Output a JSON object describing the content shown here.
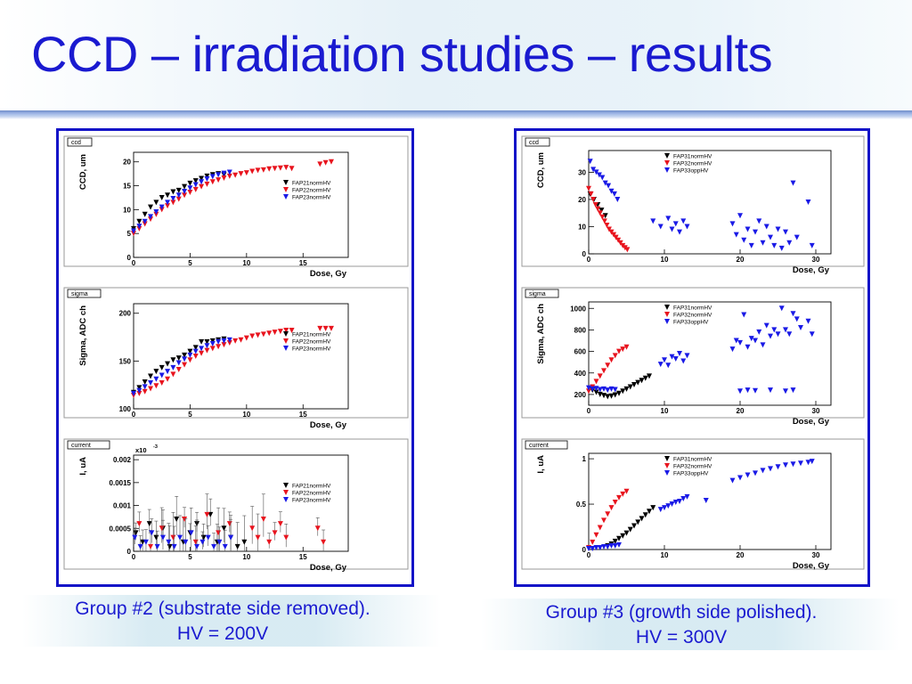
{
  "slide": {
    "title": "CCD – irradiation studies – results",
    "caption_left_line1": "Group #2 (substrate side removed).",
    "caption_left_line2": "HV = 200V",
    "caption_right_line1": "Group #3 (growth side polished).",
    "caption_right_line2": "HV = 300V",
    "colors": {
      "title": "#1a1ad0",
      "frame": "#1414c8"
    }
  },
  "chart_data": [
    {
      "id": "left-ccd",
      "type": "scatter",
      "tag": "ccd",
      "xlabel": "Dose, Gy",
      "ylabel": "CCD, um",
      "xlim": [
        0,
        19
      ],
      "ylim": [
        0,
        22
      ],
      "xticks": [
        0,
        5,
        10,
        15
      ],
      "yticks": [
        0,
        5,
        10,
        15,
        20
      ],
      "legend_position": "right",
      "series": [
        {
          "name": "FAP21normHV",
          "color": "#000000",
          "x": [
            0,
            0.5,
            1,
            1.5,
            2,
            2.5,
            3,
            3.5,
            4,
            4.5,
            5,
            5.5,
            6,
            6.5,
            7,
            7.5,
            8
          ],
          "y": [
            6,
            7.5,
            9,
            10.5,
            11.5,
            12.5,
            13,
            13.7,
            14,
            14.8,
            15.5,
            16,
            16.5,
            17,
            17.3,
            17.5,
            17.3
          ]
        },
        {
          "name": "FAP22normHV",
          "color": "#e8141e",
          "x": [
            0,
            0.5,
            1,
            1.5,
            2,
            2.5,
            3,
            3.5,
            4,
            4.5,
            5,
            5.5,
            6,
            6.5,
            7,
            7.5,
            8,
            8.5,
            9,
            9.5,
            10,
            10.5,
            11,
            11.5,
            12,
            12.5,
            13,
            13.5,
            14,
            16.5,
            17,
            17.5
          ],
          "y": [
            5,
            6,
            7,
            8,
            9,
            10,
            10.8,
            11.5,
            12.2,
            13,
            13.6,
            14.2,
            14.8,
            15.3,
            15.8,
            16.2,
            16.6,
            17,
            17.2,
            17.5,
            17.7,
            18,
            18.2,
            18.3,
            18.5,
            18.6,
            18.7,
            18.8,
            18.6,
            19.5,
            19.8,
            20
          ]
        },
        {
          "name": "FAP23normHV",
          "color": "#1a1ae6",
          "x": [
            0,
            0.5,
            1,
            1.5,
            2,
            2.5,
            3,
            3.5,
            4,
            4.5,
            5,
            5.5,
            6,
            6.5,
            7,
            7.5,
            8,
            8.5
          ],
          "y": [
            5.5,
            6.5,
            7.5,
            8.5,
            9.5,
            10.5,
            11.5,
            12.3,
            13,
            13.8,
            14.5,
            15.2,
            15.8,
            16.4,
            16.9,
            17.3,
            17.6,
            17.8
          ]
        }
      ]
    },
    {
      "id": "left-sigma",
      "type": "scatter",
      "tag": "sigma",
      "xlabel": "Dose, Gy",
      "ylabel": "Sigma, ADC ch",
      "xlim": [
        0,
        19
      ],
      "ylim": [
        100,
        210
      ],
      "xticks": [
        0,
        5,
        10,
        15
      ],
      "yticks": [
        100,
        150,
        200
      ],
      "legend_position": "right",
      "series": [
        {
          "name": "FAP21normHV",
          "color": "#000000",
          "x": [
            0,
            0.5,
            1,
            1.5,
            2,
            2.5,
            3,
            3.5,
            4,
            4.5,
            5,
            5.5,
            6,
            6.5,
            7,
            7.5,
            8
          ],
          "y": [
            117,
            122,
            128,
            134,
            139,
            143,
            147,
            151,
            153,
            156,
            160,
            164,
            170,
            170,
            171,
            172,
            173
          ]
        },
        {
          "name": "FAP22normHV",
          "color": "#e8141e",
          "x": [
            0,
            0.5,
            1,
            1.5,
            2,
            2.5,
            3,
            3.5,
            4,
            4.5,
            5,
            5.5,
            6,
            6.5,
            7,
            7.5,
            8,
            8.5,
            9,
            9.5,
            10,
            10.5,
            11,
            11.5,
            12,
            12.5,
            13,
            13.5,
            14,
            16.5,
            17,
            17.5
          ],
          "y": [
            114,
            116,
            118,
            121,
            124,
            127,
            131,
            136,
            141,
            146,
            151,
            155,
            158,
            161,
            163,
            165,
            167,
            169,
            171,
            172,
            174,
            176,
            177,
            178,
            179,
            180,
            181,
            182,
            182,
            184,
            184,
            184
          ]
        },
        {
          "name": "FAP23normHV",
          "color": "#1a1ae6",
          "x": [
            0,
            0.5,
            1,
            1.5,
            2,
            2.5,
            3,
            3.5,
            4,
            4.5,
            5,
            5.5,
            6,
            6.5,
            7,
            7.5,
            8,
            8.5
          ],
          "y": [
            116,
            119,
            123,
            127,
            131,
            135,
            139,
            143,
            148,
            152,
            156,
            160,
            163,
            166,
            168,
            170,
            171,
            172
          ]
        }
      ]
    },
    {
      "id": "left-current",
      "type": "scatter",
      "tag": "current",
      "xlabel": "Dose, Gy",
      "ylabel": "I, uA",
      "yexponent": "x10",
      "xlim": [
        0,
        19
      ],
      "ylim": [
        0,
        0.0021
      ],
      "xticks": [
        0,
        5,
        10,
        15
      ],
      "yticks": [
        0,
        0.0005,
        0.001,
        0.0015,
        0.002
      ],
      "ytick_labels": [
        "0",
        "0.0005",
        "0.001",
        "0.0015",
        "0.002"
      ],
      "legend_position": "right",
      "series": [
        {
          "name": "FAP21normHV",
          "color": "#000000",
          "x": [
            0.2,
            0.8,
            1.4,
            2,
            2.6,
            3.2,
            3.8,
            4.4,
            5,
            5.6,
            6.2,
            6.8,
            7.4,
            8,
            8.6,
            9.2,
            9.8
          ],
          "y": [
            0.0004,
            0.0002,
            0.0006,
            0.0003,
            0.0005,
            0.0001,
            0.0007,
            0.0002,
            0.0004,
            0.0006,
            0.0003,
            0.0008,
            0.0002,
            0.0005,
            0.0003,
            0.0001,
            0.0002
          ]
        },
        {
          "name": "FAP22normHV",
          "color": "#e8141e",
          "x": [
            0.5,
            1.5,
            2.5,
            3.5,
            4.5,
            5.5,
            6.5,
            7.5,
            8.5,
            10.5,
            11,
            11.5,
            12,
            12.5,
            13,
            13.5,
            16.3,
            16.8
          ],
          "y": [
            0.0006,
            0.0001,
            0.0005,
            0.0003,
            0.0007,
            0.0002,
            0.0008,
            0.0004,
            0.0006,
            0.0005,
            0.0003,
            0.0007,
            0.0002,
            0.0004,
            0.0006,
            0.0003,
            0.0005,
            0.0002
          ]
        },
        {
          "name": "FAP23normHV",
          "color": "#1a1ae6",
          "x": [
            0.1,
            0.6,
            1.1,
            1.6,
            2.1,
            2.6,
            3.1,
            3.6,
            4.1,
            4.6,
            5.1,
            5.6,
            6.1,
            6.6,
            7.1,
            7.6,
            8.1,
            8.6
          ],
          "y": [
            0.0003,
            0.0001,
            0.0002,
            0.0004,
            0.0001,
            0.0003,
            0.0002,
            0.0001,
            0.0003,
            0.0002,
            0.0004,
            0.0001,
            0.0002,
            0.0003,
            0.0001,
            0.0002,
            0.0001,
            0.0003
          ]
        }
      ]
    },
    {
      "id": "right-ccd",
      "type": "scatter",
      "tag": "ccd",
      "xlabel": "Dose, Gy",
      "ylabel": "CCD, um",
      "xlim": [
        0,
        32
      ],
      "ylim": [
        0,
        38
      ],
      "xticks": [
        0,
        10,
        20,
        30
      ],
      "yticks": [
        0,
        10,
        20,
        30
      ],
      "legend_position": "top-right",
      "series": [
        {
          "name": "FAP31normHV",
          "color": "#000000",
          "x": [
            0.2,
            0.7,
            1.2,
            1.7,
            2.2
          ],
          "y": [
            22,
            20,
            18,
            16,
            14
          ]
        },
        {
          "name": "FAP32normHV",
          "color": "#e8141e",
          "x": [
            0,
            0.3,
            0.6,
            0.9,
            1.2,
            1.5,
            1.8,
            2.1,
            2.4,
            2.7,
            3,
            3.3,
            3.6,
            3.9,
            4.2,
            4.5,
            4.8,
            5.1
          ],
          "y": [
            24,
            22,
            20,
            18,
            16.5,
            15,
            13.5,
            12,
            10.5,
            9,
            8,
            7,
            6,
            5,
            4,
            3,
            2.2,
            1.5
          ]
        },
        {
          "name": "FAP33oppHV",
          "color": "#1a1ae6",
          "x": [
            0.2,
            0.6,
            1,
            1.4,
            1.8,
            2.2,
            2.6,
            3,
            3.4,
            3.8,
            8.5,
            9.5,
            10.5,
            11,
            11.5,
            12,
            12.5,
            13,
            19,
            19.5,
            20,
            20.5,
            21,
            21.5,
            22,
            22.5,
            23,
            23.5,
            24,
            24.5,
            25,
            25.5,
            26,
            26.5,
            27,
            27.5,
            29,
            29.5
          ],
          "y": [
            34,
            31,
            30,
            29,
            28,
            26,
            25,
            23,
            22,
            20,
            12,
            10,
            13,
            9,
            11,
            8,
            12,
            10,
            11,
            7,
            14,
            5,
            9,
            3,
            8,
            12,
            4,
            10,
            6,
            3,
            9,
            2,
            8,
            4,
            26,
            6,
            19,
            3
          ]
        }
      ]
    },
    {
      "id": "right-sigma",
      "type": "scatter",
      "tag": "sigma",
      "xlabel": "Dose, Gy",
      "ylabel": "Sigma, ADC ch",
      "xlim": [
        0,
        32
      ],
      "ylim": [
        100,
        1060
      ],
      "xticks": [
        0,
        10,
        20,
        30
      ],
      "yticks": [
        200,
        400,
        600,
        800,
        1000
      ],
      "legend_position": "top-right",
      "series": [
        {
          "name": "FAP31normHV",
          "color": "#000000",
          "x": [
            0.5,
            1,
            1.5,
            2,
            2.5,
            3,
            3.5,
            4,
            4.5,
            5,
            5.5,
            6,
            6.5,
            7,
            7.5,
            8
          ],
          "y": [
            240,
            220,
            200,
            190,
            180,
            185,
            195,
            210,
            230,
            250,
            270,
            290,
            310,
            330,
            350,
            370
          ]
        },
        {
          "name": "FAP32normHV",
          "color": "#e8141e",
          "x": [
            0,
            0.5,
            1,
            1.5,
            2,
            2.5,
            3,
            3.5,
            4,
            4.5,
            5
          ],
          "y": [
            230,
            270,
            320,
            370,
            420,
            470,
            520,
            560,
            600,
            620,
            640
          ]
        },
        {
          "name": "FAP33oppHV",
          "color": "#1a1ae6",
          "x": [
            0,
            0.5,
            1,
            1.5,
            2,
            2.5,
            3,
            3.5,
            9.5,
            10,
            10.5,
            11,
            11.5,
            12,
            12.5,
            13,
            19,
            19.5,
            20,
            20.5,
            21,
            21.5,
            22,
            22.5,
            23,
            23.5,
            24,
            24.5,
            25,
            25.5,
            26,
            26.5,
            27,
            27.5,
            28,
            29,
            29.5,
            20,
            21,
            22,
            24,
            26,
            27
          ],
          "y": [
            260,
            250,
            255,
            245,
            250,
            240,
            250,
            245,
            480,
            520,
            470,
            550,
            530,
            580,
            510,
            560,
            620,
            700,
            680,
            940,
            640,
            720,
            700,
            780,
            660,
            840,
            740,
            800,
            760,
            1000,
            800,
            760,
            950,
            900,
            820,
            880,
            760,
            230,
            240,
            235,
            240,
            230,
            240
          ]
        }
      ]
    },
    {
      "id": "right-current",
      "type": "scatter",
      "tag": "current",
      "xlabel": "Dose, Gy",
      "ylabel": "I, uA",
      "xlim": [
        0,
        32
      ],
      "ylim": [
        0,
        1.06
      ],
      "xticks": [
        0,
        10,
        20,
        30
      ],
      "yticks": [
        0,
        0.5,
        1
      ],
      "legend_position": "top-right",
      "series": [
        {
          "name": "FAP31normHV",
          "color": "#000000",
          "x": [
            2.5,
            3,
            3.5,
            4,
            4.5,
            5,
            5.5,
            6,
            6.5,
            7,
            7.5,
            8,
            8.5
          ],
          "y": [
            0.04,
            0.06,
            0.09,
            0.12,
            0.15,
            0.18,
            0.22,
            0.26,
            0.3,
            0.34,
            0.38,
            0.42,
            0.46
          ]
        },
        {
          "name": "FAP32normHV",
          "color": "#e8141e",
          "x": [
            0,
            0.5,
            1,
            1.5,
            2,
            2.5,
            3,
            3.5,
            4,
            4.5,
            5
          ],
          "y": [
            0.02,
            0.08,
            0.16,
            0.24,
            0.32,
            0.39,
            0.46,
            0.52,
            0.57,
            0.61,
            0.64
          ]
        },
        {
          "name": "FAP33oppHV",
          "color": "#1a1ae6",
          "x": [
            0,
            0.5,
            1,
            1.5,
            2,
            2.5,
            3,
            3.5,
            4,
            9.5,
            10,
            10.5,
            11,
            11.5,
            12,
            12.5,
            13,
            15.5,
            19,
            20,
            21,
            22,
            23,
            24,
            25,
            26,
            27,
            28,
            29,
            29.5
          ],
          "y": [
            0.01,
            0.01,
            0.02,
            0.02,
            0.03,
            0.03,
            0.04,
            0.04,
            0.05,
            0.44,
            0.46,
            0.48,
            0.5,
            0.52,
            0.53,
            0.56,
            0.58,
            0.54,
            0.76,
            0.79,
            0.82,
            0.84,
            0.87,
            0.89,
            0.91,
            0.93,
            0.94,
            0.95,
            0.96,
            0.97
          ]
        }
      ]
    }
  ]
}
